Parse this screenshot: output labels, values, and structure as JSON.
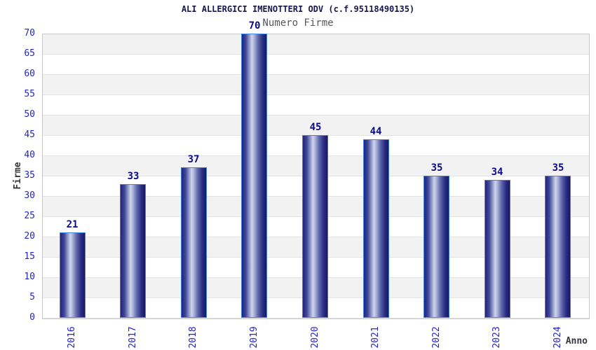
{
  "title": "ALI ALLERGICI IMENOTTERI ODV (c.f.95118490135)",
  "subtitle": "Numero Firme",
  "chart_data": {
    "type": "bar",
    "title": "ALI ALLERGICI IMENOTTERI ODV (c.f.95118490135)",
    "subtitle": "Numero Firme",
    "categories": [
      "2016",
      "2017",
      "2018",
      "2019",
      "2020",
      "2021",
      "2022",
      "2023",
      "2024"
    ],
    "values": [
      21,
      33,
      37,
      70,
      45,
      44,
      35,
      34,
      35
    ],
    "xlabel": "Anno",
    "ylabel": "Firme",
    "ylim": [
      0,
      70
    ],
    "ytick_step": 5,
    "yticks": [
      0,
      5,
      10,
      15,
      20,
      25,
      30,
      35,
      40,
      45,
      50,
      55,
      60,
      65,
      70
    ],
    "grid": "horizontal-bands-alternating",
    "legend": "none"
  },
  "colors": {
    "title": "#17174b",
    "subtitle": "#56565c",
    "tick_label": "#2424cc",
    "value_label": "#0a0a8c",
    "axis_title": "#38383f",
    "band_gray": "#f2f2f2",
    "band_white": "#ffffff",
    "grid_line": "#e3e3e3",
    "plot_border": "#c9c9c9",
    "bar_border": "#3d85e0",
    "bar_gradient": [
      "#23237c 0%",
      "#3f4797 16%",
      "#9ba4cf 32%",
      "#cfd5ee 41%",
      "#aab3d8 50%",
      "#5f68ab 66%",
      "#2b2f85 84%",
      "#171763 100%"
    ]
  }
}
